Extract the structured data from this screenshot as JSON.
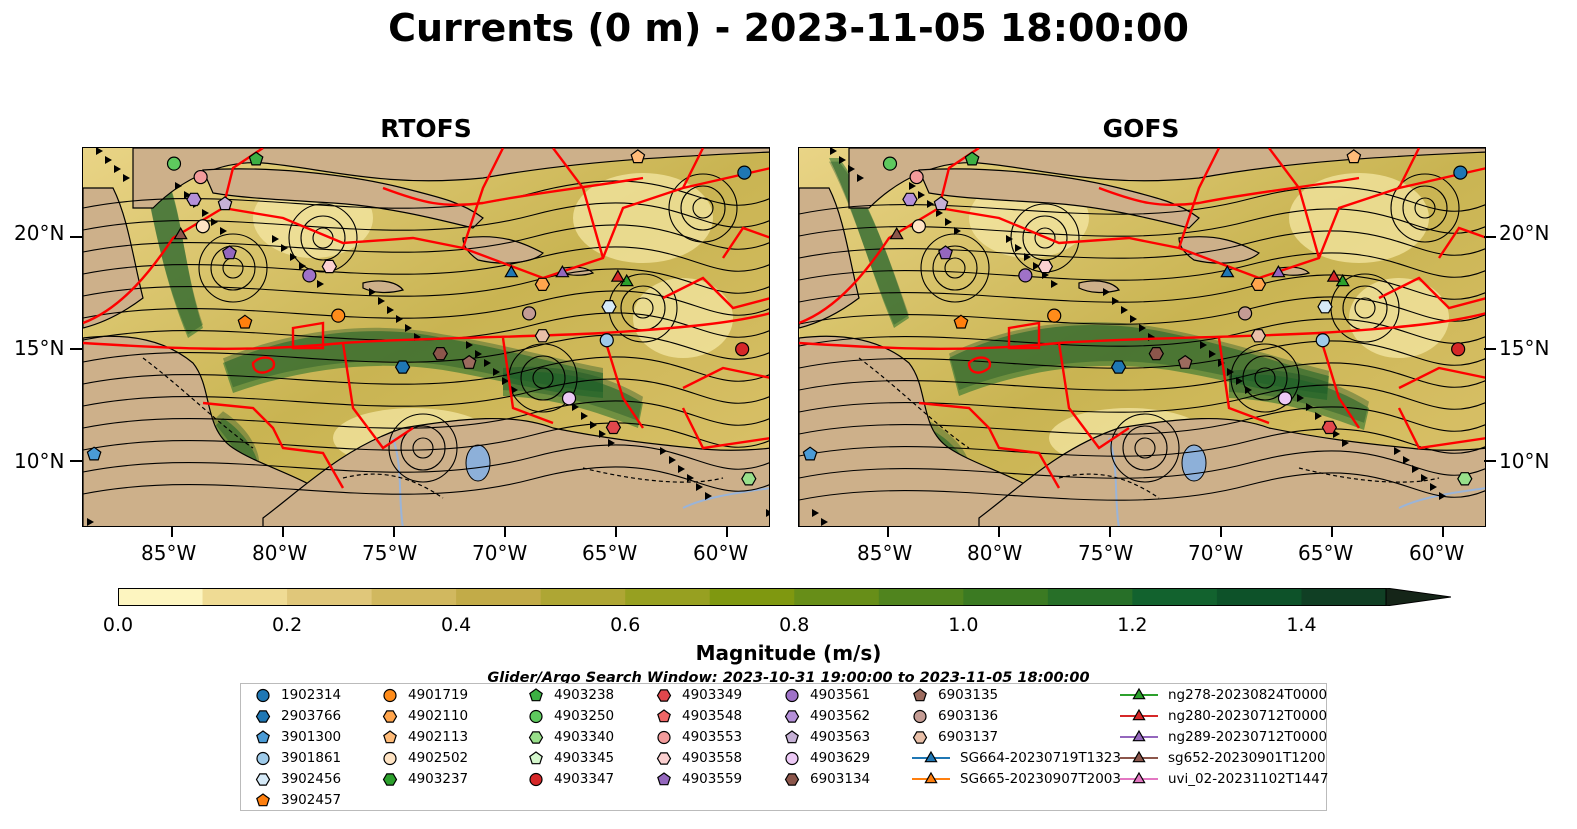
{
  "title": "Currents (0 m) - 2023-11-05 18:00:00",
  "panels": [
    {
      "title": "RTOFS"
    },
    {
      "title": "GOFS"
    }
  ],
  "axes": {
    "lat_ticks": [
      "20°N",
      "15°N",
      "10°N"
    ],
    "lon_ticks": [
      "85°W",
      "80°W",
      "75°W",
      "70°W",
      "65°W",
      "60°W"
    ],
    "extent": {
      "lon": [
        -89,
        -58
      ],
      "lat": [
        7,
        24
      ]
    }
  },
  "colorbar": {
    "label": "Magnitude (m/s)",
    "ticks": [
      "0.0",
      "0.2",
      "0.4",
      "0.6",
      "0.8",
      "1.0",
      "1.2",
      "1.4"
    ],
    "range": [
      0.0,
      1.5
    ],
    "colors": [
      "#fdf5c0",
      "#efdb94",
      "#e0c77a",
      "#d1b85f",
      "#c2ab48",
      "#aea634",
      "#97a021",
      "#7f9810",
      "#678e18",
      "#50841e",
      "#3b7a22",
      "#276f28",
      "#12622e",
      "#0d5229",
      "#103f24",
      "#14301d",
      "#152518"
    ]
  },
  "search_window": "Glider/Argo Search Window: 2023-10-31 19:00:00 to 2023-11-05 18:00:00",
  "legend": [
    {
      "label": "1902314",
      "marker": "circle",
      "color": "#1f77b4"
    },
    {
      "label": "2903766",
      "marker": "hexagon",
      "color": "#1f77b4"
    },
    {
      "label": "3901300",
      "marker": "pentagon",
      "color": "#4a9bd6"
    },
    {
      "label": "3901861",
      "marker": "circle",
      "color": "#9ecae9"
    },
    {
      "label": "3902456",
      "marker": "hexagon",
      "color": "#d6eaf8"
    },
    {
      "label": "3902457",
      "marker": "pentagon",
      "color": "#ff7f0e"
    },
    {
      "label": "4901719",
      "marker": "circle",
      "color": "#ff8c1a"
    },
    {
      "label": "4902110",
      "marker": "hexagon",
      "color": "#ffa54d"
    },
    {
      "label": "4902113",
      "marker": "pentagon",
      "color": "#ffbb78"
    },
    {
      "label": "4902502",
      "marker": "circle",
      "color": "#ffe4c4"
    },
    {
      "label": "4903237",
      "marker": "hexagon",
      "color": "#2ca02c"
    },
    {
      "label": "4903238",
      "marker": "pentagon",
      "color": "#3cb043"
    },
    {
      "label": "4903250",
      "marker": "circle",
      "color": "#5ec95e"
    },
    {
      "label": "4903340",
      "marker": "hexagon",
      "color": "#98df8a"
    },
    {
      "label": "4903345",
      "marker": "pentagon",
      "color": "#d4f7cc"
    },
    {
      "label": "4903347",
      "marker": "circle",
      "color": "#d62728"
    },
    {
      "label": "4903349",
      "marker": "hexagon",
      "color": "#e0474c"
    },
    {
      "label": "4903548",
      "marker": "pentagon",
      "color": "#ee6666"
    },
    {
      "label": "4903553",
      "marker": "circle",
      "color": "#f29b9b"
    },
    {
      "label": "4903558",
      "marker": "hexagon",
      "color": "#fbd0d0"
    },
    {
      "label": "4903559",
      "marker": "pentagon",
      "color": "#9467bd"
    },
    {
      "label": "4903561",
      "marker": "circle",
      "color": "#9f72c8"
    },
    {
      "label": "4903562",
      "marker": "hexagon",
      "color": "#b590d9"
    },
    {
      "label": "4903563",
      "marker": "pentagon",
      "color": "#c5b0d5"
    },
    {
      "label": "4903629",
      "marker": "circle",
      "color": "#ecc9f5"
    },
    {
      "label": "6903134",
      "marker": "hexagon",
      "color": "#8c564b"
    },
    {
      "label": "6903135",
      "marker": "pentagon",
      "color": "#9c6b5e"
    },
    {
      "label": "6903136",
      "marker": "circle",
      "color": "#c49c94"
    },
    {
      "label": "6903137",
      "marker": "hexagon",
      "color": "#e8bfa8"
    },
    {
      "label": "SG664-20230719T1323",
      "marker": "triangle-line",
      "color": "#1f77b4"
    },
    {
      "label": "SG665-20230907T2003",
      "marker": "triangle-line",
      "color": "#ff7f0e"
    },
    {
      "label": "ng278-20230824T0000",
      "marker": "triangle-line",
      "color": "#2ca02c"
    },
    {
      "label": "ng280-20230712T0000",
      "marker": "triangle-line",
      "color": "#d62728"
    },
    {
      "label": "ng289-20230712T0000",
      "marker": "triangle-line",
      "color": "#9467bd"
    },
    {
      "label": "sg652-20230901T1200",
      "marker": "triangle-line",
      "color": "#8c564b"
    },
    {
      "label": "uvi_02-20231102T1447",
      "marker": "triangle-line",
      "color": "#e377c2"
    }
  ],
  "platforms": [
    {
      "id": "1902314",
      "lon": -59.2,
      "lat": 22.9
    },
    {
      "id": "2903766",
      "lon": -74.6,
      "lat": 14.2
    },
    {
      "id": "3901300",
      "lon": -88.5,
      "lat": 10.3
    },
    {
      "id": "3901861",
      "lon": -65.4,
      "lat": 15.4
    },
    {
      "id": "3902456",
      "lon": -65.3,
      "lat": 16.9
    },
    {
      "id": "4901719",
      "lon": -77.5,
      "lat": 16.5
    },
    {
      "id": "4902110",
      "lon": -68.3,
      "lat": 17.9
    },
    {
      "id": "4902113",
      "lon": -64.0,
      "lat": 23.6
    },
    {
      "id": "4903238",
      "lon": -81.2,
      "lat": 23.5
    },
    {
      "id": "4903250",
      "lon": -84.9,
      "lat": 23.3
    },
    {
      "id": "4903340",
      "lon": -59.0,
      "lat": 9.2
    },
    {
      "id": "4903347",
      "lon": -59.3,
      "lat": 15.0
    },
    {
      "id": "4903349",
      "lon": -65.1,
      "lat": 11.5
    },
    {
      "id": "4903553",
      "lon": -83.7,
      "lat": 22.7
    },
    {
      "id": "4903558",
      "lon": -77.9,
      "lat": 18.7
    },
    {
      "id": "4903559",
      "lon": -82.4,
      "lat": 19.3
    },
    {
      "id": "4903561",
      "lon": -78.8,
      "lat": 18.3
    },
    {
      "id": "4903563",
      "lon": -82.6,
      "lat": 21.5
    },
    {
      "id": "4903629",
      "lon": -67.1,
      "lat": 12.8
    },
    {
      "id": "6903134",
      "lon": -72.9,
      "lat": 14.8
    },
    {
      "id": "6903135",
      "lon": -71.6,
      "lat": 14.4
    },
    {
      "id": "6903136",
      "lon": -68.9,
      "lat": 16.6
    },
    {
      "id": "6903137",
      "lon": -68.3,
      "lat": 15.6
    },
    {
      "id": "4902502",
      "lon": -83.6,
      "lat": 20.5
    },
    {
      "id": "SG664-20230719T1323",
      "lon": -69.7,
      "lat": 18.4
    },
    {
      "id": "ng278-20230824T0000",
      "lon": -64.5,
      "lat": 18.0
    },
    {
      "id": "ng280-20230712T0000",
      "lon": -64.9,
      "lat": 18.2
    },
    {
      "id": "ng289-20230712T0000",
      "lon": -67.4,
      "lat": 18.4
    },
    {
      "id": "sg652-20230901T1200",
      "lon": -84.6,
      "lat": 20.1
    },
    {
      "id": "4903562",
      "lon": -84.0,
      "lat": 21.7
    },
    {
      "id": "3902457",
      "lon": -81.7,
      "lat": 16.2
    }
  ]
}
